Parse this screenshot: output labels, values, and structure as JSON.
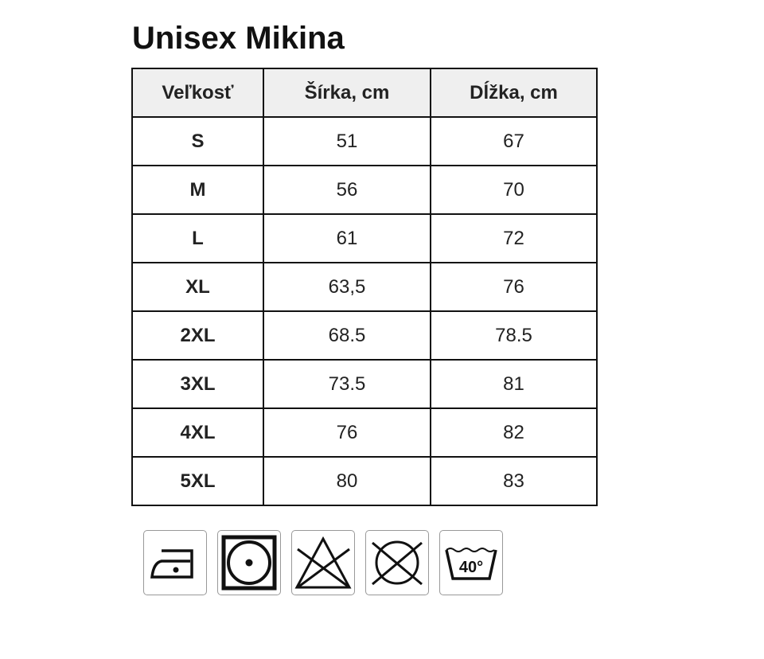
{
  "title": "Unisex Mikina",
  "table": {
    "headers": [
      "Veľkosť",
      "Šírka, cm",
      "Dĺžka, cm"
    ],
    "rows": [
      [
        "S",
        "51",
        "67"
      ],
      [
        "M",
        "56",
        "70"
      ],
      [
        "L",
        "61",
        "72"
      ],
      [
        "XL",
        "63,5",
        "76"
      ],
      [
        "2XL",
        "68.5",
        "78.5"
      ],
      [
        "3XL",
        "73.5",
        "81"
      ],
      [
        "4XL",
        "76",
        "82"
      ],
      [
        "5XL",
        "80",
        "83"
      ]
    ]
  },
  "care_icons": [
    {
      "name": "iron-low-temperature-icon"
    },
    {
      "name": "tumble-dry-icon"
    },
    {
      "name": "do-not-bleach-icon"
    },
    {
      "name": "do-not-dry-clean-icon"
    },
    {
      "name": "wash-40-icon",
      "label": "40°"
    }
  ]
}
